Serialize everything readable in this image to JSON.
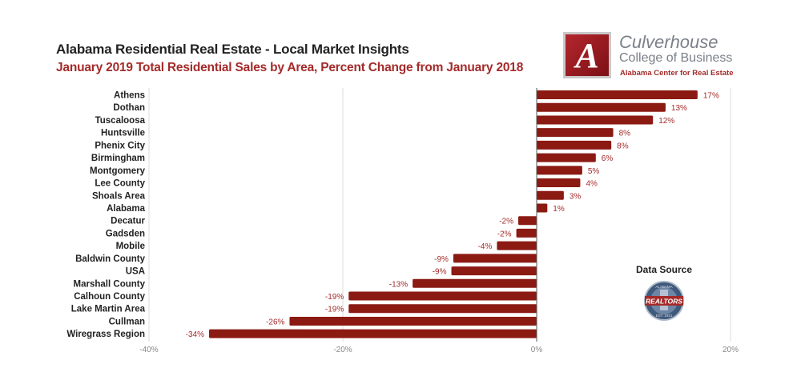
{
  "header": {
    "title": "Alabama Residential Real Estate - Local Market Insights",
    "subtitle": "January 2019 Total Residential Sales by Area, Percent Change from January 2018"
  },
  "logo": {
    "letter": "A",
    "line1": "Culverhouse",
    "line2": "College of Business",
    "line3": "Alabama Center for Real Estate"
  },
  "data_source": {
    "label": "Data Source",
    "badge_text": "REALTORS",
    "badge_top": "ALABAMA",
    "badge_bottom": "EST. 1921"
  },
  "colors": {
    "bar": "#8b1a12",
    "value_label": "#a52a2a",
    "subtitle": "#a52a2a",
    "gridline": "#dddddd",
    "zero_axis": "#555555"
  },
  "chart_data": {
    "type": "bar",
    "orientation": "horizontal",
    "title": "January 2019 Total Residential Sales by Area, Percent Change from January 2018",
    "xlabel": "",
    "ylabel": "",
    "categories": [
      "Athens",
      "Dothan",
      "Tuscaloosa",
      "Huntsville",
      "Phenix City",
      "Birmingham",
      "Montgomery",
      "Lee County",
      "Shoals Area",
      "Alabama",
      "Decatur",
      "Gadsden",
      "Mobile",
      "Baldwin County",
      "USA",
      "Marshall County",
      "Calhoun County",
      "Lake Martin Area",
      "Cullman",
      "Wiregrass Region"
    ],
    "values": [
      16.6,
      13.3,
      12.0,
      7.9,
      7.7,
      6.1,
      4.7,
      4.5,
      2.8,
      1.1,
      -1.9,
      -2.1,
      -4.1,
      -8.6,
      -8.8,
      -12.8,
      -19.4,
      -19.4,
      -25.5,
      -33.8
    ],
    "value_labels": [
      "17%",
      "13%",
      "12%",
      "8%",
      "8%",
      "6%",
      "5%",
      "4%",
      "3%",
      "1%",
      "-2%",
      "-2%",
      "-4%",
      "-9%",
      "-9%",
      "-13%",
      "-19%",
      "-19%",
      "-26%",
      "-34%"
    ],
    "xlim": [
      -40,
      20
    ],
    "xticks": [
      -40,
      -20,
      0,
      20
    ],
    "xtick_labels": [
      "-40%",
      "-20%",
      "0%",
      "20%"
    ],
    "grid": true,
    "legend": "none"
  }
}
